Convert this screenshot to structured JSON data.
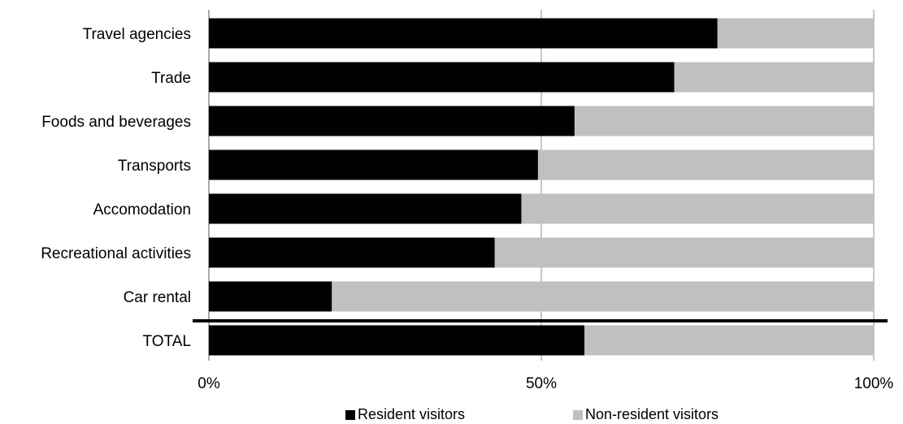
{
  "chart_data": {
    "type": "bar",
    "orientation": "horizontal",
    "stacked": true,
    "percent": true,
    "categories": [
      "Travel agencies",
      "Trade",
      "Foods and beverages",
      "Transports",
      "Accomodation",
      "Recreational  activities",
      "Car rental",
      "TOTAL"
    ],
    "series": [
      {
        "name": "Resident visitors",
        "color": "#000000",
        "values": [
          76.5,
          70,
          55,
          49.5,
          47,
          43,
          18.5,
          56.5
        ]
      },
      {
        "name": "Non-resident visitors",
        "color": "#c0c0c0",
        "values": [
          23.5,
          30,
          45,
          50.5,
          53,
          57,
          81.5,
          43.5
        ]
      }
    ],
    "xticks": [
      "0%",
      "50%",
      "100%"
    ],
    "xlim": [
      0,
      100
    ],
    "grid": true,
    "legend_position": "bottom"
  },
  "legend": {
    "resident": "Resident visitors",
    "nonresident": "Non-resident visitors"
  }
}
